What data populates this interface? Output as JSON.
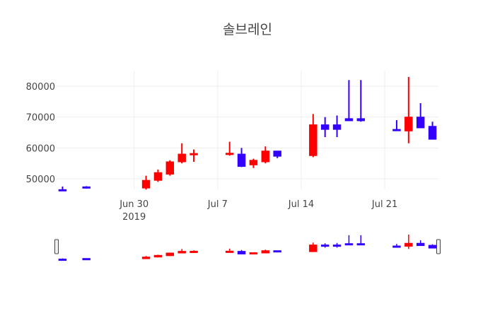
{
  "chart_data": {
    "type": "candlestick",
    "title": "솔브레인",
    "colors": {
      "increasing": "#ff0000",
      "decreasing": "#3300ff"
    },
    "grid": true,
    "rangeslider": true,
    "x_tick_labels": [
      "Jun 30",
      "Jul 7",
      "Jul 14",
      "Jul 21"
    ],
    "x_tick_sublabel": "2019",
    "y_tick_labels": [
      "50000",
      "60000",
      "70000",
      "80000"
    ],
    "ylim": [
      45000,
      85000
    ],
    "candles": [
      {
        "date": "2019-06-24",
        "open": 46500,
        "high": 47500,
        "low": 46000,
        "close": 46200
      },
      {
        "date": "2019-06-26",
        "open": 47400,
        "high": 47600,
        "low": 46800,
        "close": 47000
      },
      {
        "date": "2019-07-01",
        "open": 47000,
        "high": 51000,
        "low": 46500,
        "close": 49500
      },
      {
        "date": "2019-07-02",
        "open": 49500,
        "high": 53000,
        "low": 49000,
        "close": 52000
      },
      {
        "date": "2019-07-03",
        "open": 51500,
        "high": 56000,
        "low": 51000,
        "close": 55500
      },
      {
        "date": "2019-07-04",
        "open": 55500,
        "high": 61500,
        "low": 55000,
        "close": 58000
      },
      {
        "date": "2019-07-05",
        "open": 57800,
        "high": 59500,
        "low": 55500,
        "close": 58200
      },
      {
        "date": "2019-07-08",
        "open": 58000,
        "high": 62000,
        "low": 57500,
        "close": 58300
      },
      {
        "date": "2019-07-09",
        "open": 58000,
        "high": 60000,
        "low": 53800,
        "close": 54000
      },
      {
        "date": "2019-07-10",
        "open": 54500,
        "high": 56500,
        "low": 53500,
        "close": 56000
      },
      {
        "date": "2019-07-11",
        "open": 55500,
        "high": 60500,
        "low": 55000,
        "close": 59000
      },
      {
        "date": "2019-07-12",
        "open": 59000,
        "high": 59000,
        "low": 56700,
        "close": 57300
      },
      {
        "date": "2019-07-15",
        "open": 57500,
        "high": 71000,
        "low": 57000,
        "close": 67500
      },
      {
        "date": "2019-07-16",
        "open": 67500,
        "high": 70000,
        "low": 63500,
        "close": 66000
      },
      {
        "date": "2019-07-17",
        "open": 67500,
        "high": 70500,
        "low": 63500,
        "close": 66000
      },
      {
        "date": "2019-07-18",
        "open": 69500,
        "high": 82000,
        "low": 68700,
        "close": 68800
      },
      {
        "date": "2019-07-19",
        "open": 69500,
        "high": 82000,
        "low": 68500,
        "close": 68800
      },
      {
        "date": "2019-07-22",
        "open": 66000,
        "high": 69000,
        "low": 65500,
        "close": 65800
      },
      {
        "date": "2019-07-23",
        "open": 65500,
        "high": 83000,
        "low": 61500,
        "close": 70000
      },
      {
        "date": "2019-07-24",
        "open": 70000,
        "high": 74500,
        "low": 66500,
        "close": 66500
      },
      {
        "date": "2019-07-25",
        "open": 67000,
        "high": 68500,
        "low": 62800,
        "close": 62800
      }
    ]
  }
}
